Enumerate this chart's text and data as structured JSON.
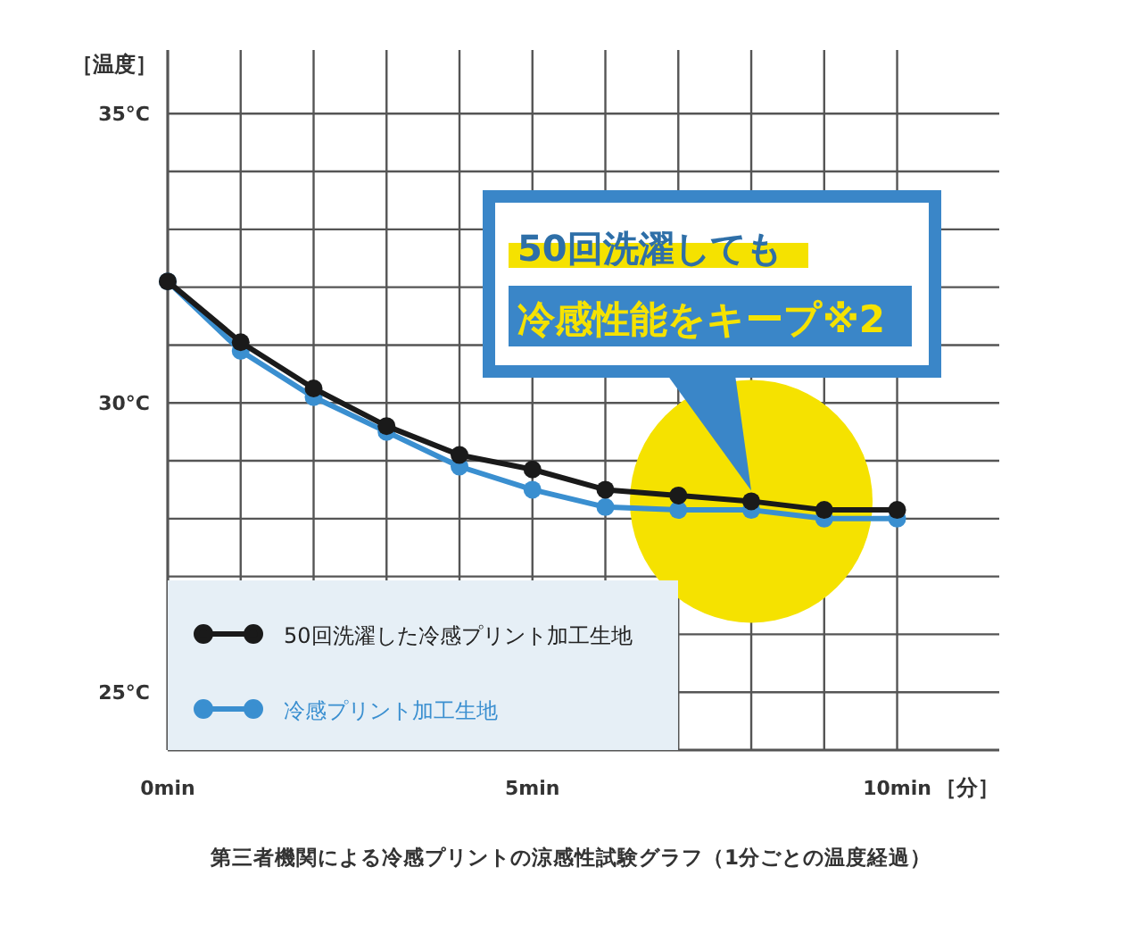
{
  "chart_data": {
    "type": "line",
    "x": [
      0,
      1,
      2,
      3,
      4,
      5,
      6,
      7,
      8,
      9,
      10
    ],
    "series": [
      {
        "name": "50回洗濯した冷感プリント加工生地",
        "color": "#1a1a1a",
        "values": [
          32.1,
          31.05,
          30.25,
          29.6,
          29.1,
          28.85,
          28.5,
          28.4,
          28.3,
          28.15,
          28.15
        ]
      },
      {
        "name": "冷感プリント加工生地",
        "color": "#3a8fd0",
        "values": [
          32.1,
          30.9,
          30.1,
          29.5,
          28.9,
          28.5,
          28.2,
          28.15,
          28.15,
          28.0,
          28.0
        ]
      }
    ],
    "xlim": [
      0,
      11.4
    ],
    "ylim": [
      24,
      36.1
    ],
    "xticks": [
      {
        "value": 0,
        "label": "0min"
      },
      {
        "value": 1,
        "label": null
      },
      {
        "value": 2,
        "label": null
      },
      {
        "value": 3,
        "label": null
      },
      {
        "value": 4,
        "label": null
      },
      {
        "value": 5,
        "label": "5min"
      },
      {
        "value": 6,
        "label": null
      },
      {
        "value": 7,
        "label": null
      },
      {
        "value": 8,
        "label": null
      },
      {
        "value": 9,
        "label": null
      },
      {
        "value": 10,
        "label": "10min"
      }
    ],
    "yticks": [
      {
        "value": 25,
        "label": "25°C"
      },
      {
        "value": 26,
        "label": null
      },
      {
        "value": 27,
        "label": null
      },
      {
        "value": 28,
        "label": null
      },
      {
        "value": 29,
        "label": null
      },
      {
        "value": 30,
        "label": "30°C"
      },
      {
        "value": 31,
        "label": null
      },
      {
        "value": 32,
        "label": null
      },
      {
        "value": 33,
        "label": null
      },
      {
        "value": 34,
        "label": null
      },
      {
        "value": 35,
        "label": "35°C"
      }
    ],
    "xlabel": "［分］",
    "ylabel": "［温度］",
    "grid": true,
    "legend": "bottom left",
    "marker": "circle",
    "line_style": "solid",
    "annotations": [
      "50回洗濯しても",
      "冷感性能をキープ※2",
      "第三者機関による冷感プリントの涼感性試験グラフ（1分ごとの温度経過）"
    ]
  }
}
